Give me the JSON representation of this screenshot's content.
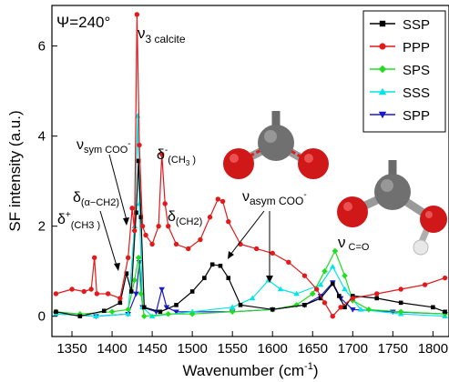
{
  "chart_data": {
    "type": "line",
    "xlabel_main": "Wavenumber (cm",
    "xlabel_sup": "-1",
    "xlabel_end": ")",
    "ylabel": "SF intensity (a.u.)",
    "xlim": [
      1325,
      1820
    ],
    "ylim": [
      -0.45,
      6.9
    ],
    "x_ticks": [
      1350,
      1400,
      1450,
      1500,
      1550,
      1600,
      1650,
      1700,
      1750,
      1800
    ],
    "y_ticks": [
      0,
      2,
      4,
      6
    ],
    "psi_label": "Ψ=240°",
    "legend_position": "top-right",
    "series": [
      {
        "name": "SSP",
        "color": "#000000",
        "marker": "square",
        "points": [
          [
            1330,
            0.1
          ],
          [
            1360,
            0.0
          ],
          [
            1390,
            0.12
          ],
          [
            1410,
            0.3
          ],
          [
            1418,
            0.95
          ],
          [
            1424,
            0.55
          ],
          [
            1430,
            2.3
          ],
          [
            1433,
            3.45
          ],
          [
            1436,
            2.2
          ],
          [
            1440,
            0.2
          ],
          [
            1460,
            0.1
          ],
          [
            1480,
            0.25
          ],
          [
            1500,
            0.55
          ],
          [
            1515,
            0.85
          ],
          [
            1525,
            1.15
          ],
          [
            1535,
            1.12
          ],
          [
            1545,
            0.85
          ],
          [
            1560,
            0.25
          ],
          [
            1600,
            0.15
          ],
          [
            1640,
            0.25
          ],
          [
            1660,
            0.4
          ],
          [
            1675,
            0.72
          ],
          [
            1683,
            0.45
          ],
          [
            1690,
            0.2
          ],
          [
            1700,
            0.45
          ],
          [
            1730,
            0.4
          ],
          [
            1760,
            0.3
          ],
          [
            1800,
            0.2
          ],
          [
            1815,
            0.1
          ]
        ]
      },
      {
        "name": "PPP",
        "color": "#e31a1c",
        "marker": "circle",
        "points": [
          [
            1330,
            0.5
          ],
          [
            1350,
            0.6
          ],
          [
            1365,
            0.55
          ],
          [
            1374,
            0.6
          ],
          [
            1378,
            1.3
          ],
          [
            1381,
            0.5
          ],
          [
            1395,
            0.5
          ],
          [
            1410,
            0.4
          ],
          [
            1420,
            1.3
          ],
          [
            1425,
            2.4
          ],
          [
            1428,
            1.9
          ],
          [
            1431,
            6.7
          ],
          [
            1434,
            3.8
          ],
          [
            1438,
            2.0
          ],
          [
            1442,
            1.8
          ],
          [
            1450,
            1.6
          ],
          [
            1458,
            2.0
          ],
          [
            1462,
            3.6
          ],
          [
            1466,
            2.5
          ],
          [
            1470,
            2.0
          ],
          [
            1480,
            1.6
          ],
          [
            1495,
            1.5
          ],
          [
            1510,
            1.7
          ],
          [
            1522,
            2.2
          ],
          [
            1532,
            2.6
          ],
          [
            1538,
            2.55
          ],
          [
            1545,
            2.1
          ],
          [
            1560,
            1.6
          ],
          [
            1580,
            1.5
          ],
          [
            1600,
            1.4
          ],
          [
            1620,
            1.2
          ],
          [
            1640,
            0.9
          ],
          [
            1655,
            0.6
          ],
          [
            1665,
            0.3
          ],
          [
            1675,
            0.0
          ],
          [
            1685,
            0.2
          ],
          [
            1700,
            0.4
          ],
          [
            1730,
            0.5
          ],
          [
            1760,
            0.6
          ],
          [
            1790,
            0.7
          ],
          [
            1815,
            0.85
          ]
        ]
      },
      {
        "name": "SPS",
        "color": "#22dd22",
        "marker": "diamond",
        "points": [
          [
            1330,
            0.1
          ],
          [
            1360,
            0.05
          ],
          [
            1400,
            0.1
          ],
          [
            1420,
            0.15
          ],
          [
            1428,
            0.8
          ],
          [
            1433,
            1.3
          ],
          [
            1436,
            0.5
          ],
          [
            1440,
            0.0
          ],
          [
            1470,
            0.05
          ],
          [
            1500,
            0.05
          ],
          [
            1550,
            0.1
          ],
          [
            1600,
            0.15
          ],
          [
            1630,
            0.25
          ],
          [
            1650,
            0.5
          ],
          [
            1665,
            1.0
          ],
          [
            1678,
            1.45
          ],
          [
            1690,
            0.9
          ],
          [
            1700,
            0.35
          ],
          [
            1720,
            0.15
          ],
          [
            1760,
            0.1
          ],
          [
            1815,
            0.05
          ]
        ]
      },
      {
        "name": "SSS",
        "color": "#00e5e5",
        "marker": "triangle-up",
        "points": [
          [
            1330,
            0.05
          ],
          [
            1380,
            0.0
          ],
          [
            1420,
            0.05
          ],
          [
            1428,
            2.0
          ],
          [
            1432,
            4.45
          ],
          [
            1434,
            2.5
          ],
          [
            1438,
            0.2
          ],
          [
            1450,
            0.0
          ],
          [
            1500,
            0.1
          ],
          [
            1550,
            0.2
          ],
          [
            1575,
            0.4
          ],
          [
            1595,
            0.8
          ],
          [
            1610,
            0.6
          ],
          [
            1630,
            0.5
          ],
          [
            1660,
            0.7
          ],
          [
            1675,
            1.1
          ],
          [
            1690,
            0.6
          ],
          [
            1710,
            0.15
          ],
          [
            1760,
            0.05
          ],
          [
            1815,
            0.0
          ]
        ]
      },
      {
        "name": "SPP",
        "color": "#1a1acc",
        "marker": "triangle-down",
        "points": [
          [
            1330,
            0.05
          ],
          [
            1380,
            0.0
          ],
          [
            1420,
            0.05
          ],
          [
            1430,
            0.5
          ],
          [
            1434,
            1.2
          ],
          [
            1438,
            0.2
          ],
          [
            1455,
            0.1
          ],
          [
            1462,
            0.6
          ],
          [
            1468,
            0.2
          ],
          [
            1480,
            0.1
          ],
          [
            1550,
            0.1
          ],
          [
            1600,
            0.15
          ],
          [
            1640,
            0.25
          ],
          [
            1660,
            0.45
          ],
          [
            1675,
            0.75
          ],
          [
            1685,
            0.4
          ],
          [
            1700,
            0.15
          ],
          [
            1750,
            0.1
          ],
          [
            1815,
            0.05
          ]
        ]
      }
    ],
    "annotations": {
      "v3_main": "ν",
      "v3_sub": "3 calcite",
      "vsym_main": "ν",
      "vsym_sub": "sym COO",
      "vsym_sup": "-",
      "d_minus_main": "δ",
      "d_minus_sup": "-",
      "d_minus_sub": "(CH",
      "d_minus_sub2": "3",
      "d_minus_sub3": " )",
      "d_alpha_main": "δ",
      "d_alpha_sub": "(α−CH2)",
      "d_plus_main": "δ",
      "d_plus_sup": "+",
      "d_plus_sub": "(CH3 )",
      "d_ch2_main": "δ",
      "d_ch2_sub": "(CH2)",
      "vasym_main": "ν",
      "vasym_sub": "asym COO",
      "vasym_sup": "-",
      "vco_main": "ν",
      "vco_sub": " C=O"
    }
  }
}
